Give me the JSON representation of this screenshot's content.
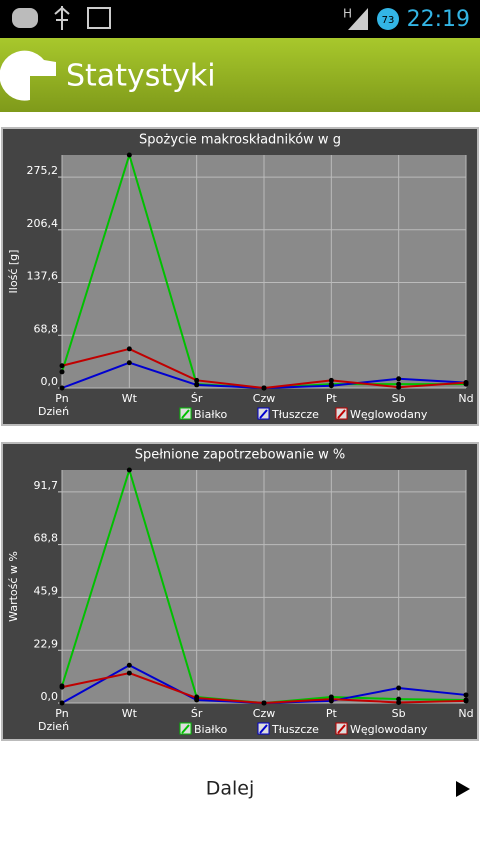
{
  "status_bar": {
    "network": "H",
    "battery": "73",
    "time": "22:19"
  },
  "app_bar": {
    "title": "Statystyki"
  },
  "chart_data": [
    {
      "type": "line",
      "title": "Spożycie makroskładników w g",
      "y_label": "Ilość [g]",
      "x_label": "Dzień",
      "categories": [
        "Pn",
        "Wt",
        "Śr",
        "Czw",
        "Pt",
        "Sb",
        "Nd"
      ],
      "series": [
        {
          "name": "Białko",
          "color": "#00c000",
          "values": [
            21,
            304,
            5,
            0,
            5,
            5,
            5
          ]
        },
        {
          "name": "Tłuszcze",
          "color": "#0000d0",
          "values": [
            0,
            33,
            4,
            0,
            3,
            12,
            7
          ]
        },
        {
          "name": "Węglowodany",
          "color": "#c00000",
          "values": [
            29,
            51,
            10,
            0,
            10,
            1,
            7
          ]
        }
      ],
      "ylim": [
        0,
        304
      ],
      "yticks": [
        {
          "value": 0,
          "label": "0,0"
        },
        {
          "value": 68.8,
          "label": "68,8"
        },
        {
          "value": 137.6,
          "label": "137,6"
        },
        {
          "value": 206.4,
          "label": "206,4"
        },
        {
          "value": 275.2,
          "label": "275,2"
        }
      ],
      "grid": true,
      "legend": "bottom"
    },
    {
      "type": "line",
      "title": "Spełnione zapotrzebowanie w %",
      "y_label": "Wartość w %",
      "x_label": "Dzień",
      "categories": [
        "Pn",
        "Wt",
        "Śr",
        "Czw",
        "Pt",
        "Sb",
        "Nd"
      ],
      "series": [
        {
          "name": "Białko",
          "color": "#00c000",
          "values": [
            7.4,
            101.2,
            2.6,
            0,
            2.6,
            1.7,
            1.3
          ]
        },
        {
          "name": "Tłuszcze",
          "color": "#0000d0",
          "values": [
            0,
            16.4,
            1.3,
            0,
            0.9,
            6.5,
            3.5
          ]
        },
        {
          "name": "Węglowodany",
          "color": "#c00000",
          "values": [
            6.9,
            13,
            2.2,
            0,
            1.7,
            0.2,
            0.9
          ]
        }
      ],
      "ylim": [
        0,
        101.2
      ],
      "yticks": [
        {
          "value": 0,
          "label": "0,0"
        },
        {
          "value": 22.9,
          "label": "22,9"
        },
        {
          "value": 45.9,
          "label": "45,9"
        },
        {
          "value": 68.8,
          "label": "68,8"
        },
        {
          "value": 91.7,
          "label": "91,7"
        }
      ],
      "grid": true,
      "legend": "bottom"
    }
  ],
  "button": {
    "label": "Dalej"
  }
}
